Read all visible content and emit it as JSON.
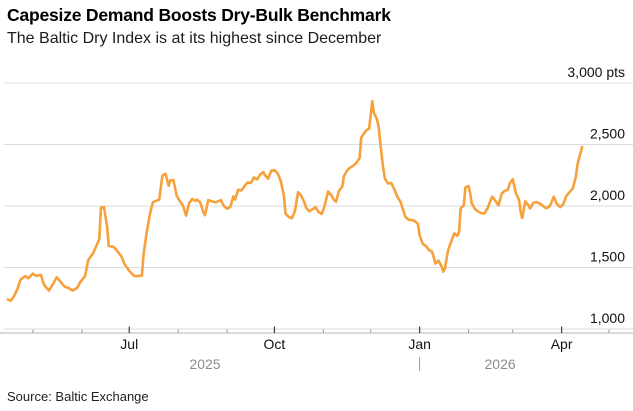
{
  "header": {
    "title": "Capesize Demand Boosts Dry-Bulk Benchmark",
    "subtitle": "The Baltic Dry Index is at its highest since December"
  },
  "source": {
    "text": "Source: Baltic Exchange"
  },
  "colors": {
    "series_line": "#F7A13C",
    "year_label": "#8C8C8C",
    "tick_label": "#111111"
  },
  "chart_data": {
    "type": "line",
    "title": "Capesize Demand Boosts Dry-Bulk Benchmark",
    "subtitle": "The Baltic Dry Index is at its highest since December",
    "unit": "pts",
    "ylim": [
      1000,
      3000
    ],
    "grid": true,
    "legend": false,
    "yticks": [
      {
        "value": 3000,
        "label": "3,000 pts"
      },
      {
        "value": 2500,
        "label": "2,500"
      },
      {
        "value": 2000,
        "label": "2,000"
      },
      {
        "value": 1500,
        "label": "1,500"
      },
      {
        "value": 1000,
        "label": "1,000"
      }
    ],
    "x_major_ticks": [
      {
        "date": "2025-07-01",
        "label": "Jul"
      },
      {
        "date": "2025-10-01",
        "label": "Oct"
      },
      {
        "date": "2026-01-01",
        "label": "Jan"
      },
      {
        "date": "2026-04-01",
        "label": "Apr"
      }
    ],
    "x_minor_ticks": [
      "2025-05-01",
      "2025-06-01",
      "2025-08-01",
      "2025-09-01",
      "2025-11-01",
      "2025-12-01",
      "2026-02-01",
      "2026-03-01",
      "2026-05-01"
    ],
    "year_labels": [
      {
        "label": "2025",
        "anchor_date": "2025-08-18"
      },
      {
        "label": "2026",
        "anchor_date": "2026-02-21"
      }
    ],
    "year_divider_date": "2026-01-01",
    "series": [
      {
        "name": "Baltic Dry Index",
        "color": "#F7A13C",
        "points": [
          [
            "2025-04-15",
            1240
          ],
          [
            "2025-04-17",
            1230
          ],
          [
            "2025-04-19",
            1268
          ],
          [
            "2025-04-21",
            1320
          ],
          [
            "2025-04-23",
            1400
          ],
          [
            "2025-04-26",
            1430
          ],
          [
            "2025-04-28",
            1412
          ],
          [
            "2025-05-01",
            1450
          ],
          [
            "2025-05-03",
            1432
          ],
          [
            "2025-05-06",
            1440
          ],
          [
            "2025-05-08",
            1360
          ],
          [
            "2025-05-11",
            1312
          ],
          [
            "2025-05-13",
            1350
          ],
          [
            "2025-05-16",
            1420
          ],
          [
            "2025-05-18",
            1392
          ],
          [
            "2025-05-21",
            1345
          ],
          [
            "2025-05-24",
            1330
          ],
          [
            "2025-05-26",
            1312
          ],
          [
            "2025-05-29",
            1335
          ],
          [
            "2025-05-31",
            1382
          ],
          [
            "2025-06-03",
            1430
          ],
          [
            "2025-06-05",
            1560
          ],
          [
            "2025-06-08",
            1615
          ],
          [
            "2025-06-10",
            1670
          ],
          [
            "2025-06-12",
            1732
          ],
          [
            "2025-06-13",
            1985
          ],
          [
            "2025-06-15",
            1992
          ],
          [
            "2025-06-17",
            1830
          ],
          [
            "2025-06-18",
            1675
          ],
          [
            "2025-06-21",
            1668
          ],
          [
            "2025-06-23",
            1640
          ],
          [
            "2025-06-26",
            1590
          ],
          [
            "2025-06-28",
            1528
          ],
          [
            "2025-07-01",
            1472
          ],
          [
            "2025-07-04",
            1432
          ],
          [
            "2025-07-06",
            1430
          ],
          [
            "2025-07-09",
            1435
          ],
          [
            "2025-07-10",
            1600
          ],
          [
            "2025-07-12",
            1780
          ],
          [
            "2025-07-14",
            1930
          ],
          [
            "2025-07-16",
            2030
          ],
          [
            "2025-07-18",
            2042
          ],
          [
            "2025-07-20",
            2050
          ],
          [
            "2025-07-22",
            2248
          ],
          [
            "2025-07-24",
            2262
          ],
          [
            "2025-07-26",
            2165
          ],
          [
            "2025-07-27",
            2208
          ],
          [
            "2025-07-29",
            2212
          ],
          [
            "2025-07-31",
            2085
          ],
          [
            "2025-08-02",
            2040
          ],
          [
            "2025-08-04",
            2005
          ],
          [
            "2025-08-06",
            1922
          ],
          [
            "2025-08-08",
            2025
          ],
          [
            "2025-08-10",
            2057
          ],
          [
            "2025-08-12",
            2040
          ],
          [
            "2025-08-13",
            2052
          ],
          [
            "2025-08-15",
            2028
          ],
          [
            "2025-08-17",
            1950
          ],
          [
            "2025-08-18",
            1925
          ],
          [
            "2025-08-20",
            2048
          ],
          [
            "2025-08-23",
            2035
          ],
          [
            "2025-08-25",
            2030
          ],
          [
            "2025-08-28",
            2048
          ],
          [
            "2025-08-30",
            2000
          ],
          [
            "2025-09-01",
            1978
          ],
          [
            "2025-09-03",
            1992
          ],
          [
            "2025-09-05",
            2078
          ],
          [
            "2025-09-06",
            2052
          ],
          [
            "2025-09-08",
            2132
          ],
          [
            "2025-09-10",
            2126
          ],
          [
            "2025-09-12",
            2162
          ],
          [
            "2025-09-14",
            2192
          ],
          [
            "2025-09-16",
            2186
          ],
          [
            "2025-09-18",
            2232
          ],
          [
            "2025-09-20",
            2216
          ],
          [
            "2025-09-22",
            2256
          ],
          [
            "2025-09-24",
            2276
          ],
          [
            "2025-09-25",
            2250
          ],
          [
            "2025-09-27",
            2222
          ],
          [
            "2025-09-29",
            2286
          ],
          [
            "2025-10-01",
            2292
          ],
          [
            "2025-10-03",
            2266
          ],
          [
            "2025-10-05",
            2206
          ],
          [
            "2025-10-07",
            2082
          ],
          [
            "2025-10-08",
            1938
          ],
          [
            "2025-10-10",
            1912
          ],
          [
            "2025-10-12",
            1900
          ],
          [
            "2025-10-14",
            1958
          ],
          [
            "2025-10-16",
            2112
          ],
          [
            "2025-10-18",
            2082
          ],
          [
            "2025-10-20",
            2030
          ],
          [
            "2025-10-21",
            1988
          ],
          [
            "2025-10-23",
            1958
          ],
          [
            "2025-10-25",
            1972
          ],
          [
            "2025-10-27",
            1990
          ],
          [
            "2025-10-29",
            1950
          ],
          [
            "2025-10-31",
            1936
          ],
          [
            "2025-11-02",
            2010
          ],
          [
            "2025-11-04",
            2118
          ],
          [
            "2025-11-06",
            2088
          ],
          [
            "2025-11-08",
            2045
          ],
          [
            "2025-11-09",
            2035
          ],
          [
            "2025-11-11",
            2125
          ],
          [
            "2025-11-13",
            2158
          ],
          [
            "2025-11-14",
            2242
          ],
          [
            "2025-11-16",
            2288
          ],
          [
            "2025-11-18",
            2312
          ],
          [
            "2025-11-20",
            2328
          ],
          [
            "2025-11-22",
            2352
          ],
          [
            "2025-11-24",
            2390
          ],
          [
            "2025-11-25",
            2555
          ],
          [
            "2025-11-28",
            2615
          ],
          [
            "2025-11-30",
            2628
          ],
          [
            "2025-12-02",
            2852
          ],
          [
            "2025-12-03",
            2760
          ],
          [
            "2025-12-05",
            2705
          ],
          [
            "2025-12-06",
            2645
          ],
          [
            "2025-12-07",
            2522
          ],
          [
            "2025-12-08",
            2410
          ],
          [
            "2025-12-09",
            2305
          ],
          [
            "2025-12-10",
            2222
          ],
          [
            "2025-12-12",
            2182
          ],
          [
            "2025-12-14",
            2188
          ],
          [
            "2025-12-16",
            2135
          ],
          [
            "2025-12-18",
            2072
          ],
          [
            "2025-12-20",
            2032
          ],
          [
            "2025-12-21",
            1988
          ],
          [
            "2025-12-23",
            1912
          ],
          [
            "2025-12-25",
            1888
          ],
          [
            "2025-12-27",
            1885
          ],
          [
            "2025-12-29",
            1878
          ],
          [
            "2025-12-31",
            1852
          ],
          [
            "2026-01-01",
            1762
          ],
          [
            "2026-01-03",
            1692
          ],
          [
            "2026-01-05",
            1675
          ],
          [
            "2026-01-07",
            1641
          ],
          [
            "2026-01-09",
            1628
          ],
          [
            "2026-01-11",
            1532
          ],
          [
            "2026-01-13",
            1556
          ],
          [
            "2026-01-15",
            1506
          ],
          [
            "2026-01-16",
            1466
          ],
          [
            "2026-01-17",
            1492
          ],
          [
            "2026-01-19",
            1638
          ],
          [
            "2026-01-21",
            1710
          ],
          [
            "2026-01-23",
            1778
          ],
          [
            "2026-01-25",
            1758
          ],
          [
            "2026-01-26",
            1792
          ],
          [
            "2026-01-27",
            1980
          ],
          [
            "2026-01-29",
            2005
          ],
          [
            "2026-01-30",
            2152
          ],
          [
            "2026-02-01",
            2162
          ],
          [
            "2026-02-02",
            2108
          ],
          [
            "2026-02-03",
            2022
          ],
          [
            "2026-02-05",
            1978
          ],
          [
            "2026-02-07",
            1956
          ],
          [
            "2026-02-09",
            1942
          ],
          [
            "2026-02-11",
            1938
          ],
          [
            "2026-02-13",
            1980
          ],
          [
            "2026-02-15",
            2046
          ],
          [
            "2026-02-16",
            2076
          ],
          [
            "2026-02-18",
            2042
          ],
          [
            "2026-02-20",
            2005
          ],
          [
            "2026-02-22",
            2100
          ],
          [
            "2026-02-24",
            2124
          ],
          [
            "2026-02-26",
            2132
          ],
          [
            "2026-02-27",
            2182
          ],
          [
            "2026-03-01",
            2218
          ],
          [
            "2026-03-03",
            2105
          ],
          [
            "2026-03-05",
            2050
          ],
          [
            "2026-03-06",
            1955
          ],
          [
            "2026-03-07",
            1902
          ],
          [
            "2026-03-09",
            2038
          ],
          [
            "2026-03-11",
            2005
          ],
          [
            "2026-03-12",
            1980
          ],
          [
            "2026-03-14",
            2025
          ],
          [
            "2026-03-16",
            2032
          ],
          [
            "2026-03-18",
            2022
          ],
          [
            "2026-03-20",
            2003
          ],
          [
            "2026-03-22",
            1982
          ],
          [
            "2026-03-24",
            1992
          ],
          [
            "2026-03-25",
            2012
          ],
          [
            "2026-03-27",
            2075
          ],
          [
            "2026-03-29",
            2018
          ],
          [
            "2026-03-31",
            1990
          ],
          [
            "2026-04-02",
            2015
          ],
          [
            "2026-04-04",
            2082
          ],
          [
            "2026-04-06",
            2112
          ],
          [
            "2026-04-08",
            2142
          ],
          [
            "2026-04-10",
            2235
          ],
          [
            "2026-04-11",
            2335
          ],
          [
            "2026-04-14",
            2480
          ]
        ]
      }
    ]
  }
}
